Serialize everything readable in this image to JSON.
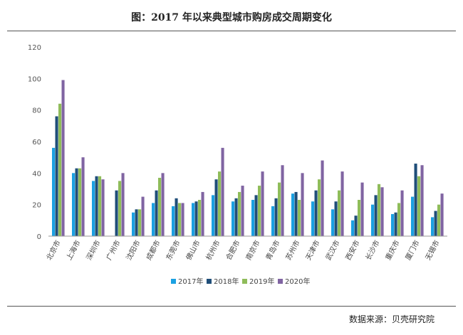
{
  "title": "图：2017 年以来典型城市购房成交周期变化",
  "source": "数据来源：贝壳研究院",
  "chart_data": {
    "type": "bar",
    "title": "图：2017 年以来典型城市购房成交周期变化",
    "xlabel": "",
    "ylabel": "",
    "ylim": [
      0,
      120
    ],
    "yticks": [
      0,
      20,
      40,
      60,
      80,
      100,
      120
    ],
    "grid": false,
    "legend_position": "bottom",
    "categories": [
      "北京市",
      "上海市",
      "深圳市",
      "广州市",
      "沈阳市",
      "成都市",
      "东莞市",
      "佛山市",
      "杭州市",
      "合肥市",
      "南京市",
      "青岛市",
      "苏州市",
      "天津市",
      "武汉市",
      "西安市",
      "长沙市",
      "重庆市",
      "厦门市",
      "无锡市"
    ],
    "series": [
      {
        "name": "2017年",
        "color": "#1ba1e2",
        "values": [
          56,
          40,
          35,
          0,
          15,
          21,
          19,
          21,
          26,
          22,
          23,
          19,
          27,
          22,
          17,
          10,
          20,
          14,
          25,
          12
        ]
      },
      {
        "name": "2018年",
        "color": "#1f4e79",
        "values": [
          76,
          43,
          38,
          29,
          17,
          29,
          24,
          22,
          36,
          24,
          26,
          24,
          28,
          29,
          22,
          13,
          26,
          15,
          46,
          16
        ]
      },
      {
        "name": "2019年",
        "color": "#8fbc5a",
        "values": [
          84,
          43,
          38,
          35,
          17,
          37,
          21,
          23,
          41,
          28,
          32,
          34,
          23,
          36,
          29,
          23,
          33,
          21,
          38,
          20
        ]
      },
      {
        "name": "2020年",
        "color": "#8064a2",
        "values": [
          99,
          50,
          36,
          40,
          25,
          40,
          21,
          28,
          56,
          32,
          41,
          45,
          40,
          48,
          41,
          34,
          31,
          29,
          45,
          27
        ]
      }
    ]
  }
}
